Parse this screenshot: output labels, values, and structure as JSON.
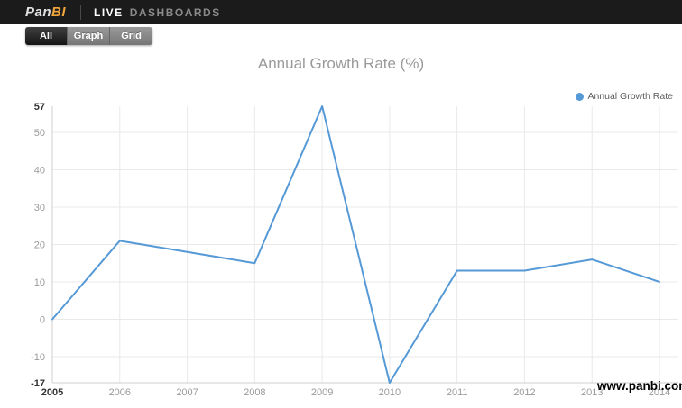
{
  "header": {
    "logo_part1": "Pan",
    "logo_part2": "BI",
    "live": "LIVE",
    "dashboards": "DASHBOARDS"
  },
  "tabs": [
    {
      "label": "All",
      "active": true
    },
    {
      "label": "Graph",
      "active": false
    },
    {
      "label": "Grid",
      "active": false
    }
  ],
  "watermark": "www.panbi.com",
  "colors": {
    "header_bg": "#1b1b1b",
    "logo_accent": "#f0a43c",
    "series_blue": "#5599d6",
    "gridline": "#e9e9e9",
    "axis_line": "#cfcfcf"
  },
  "chart_data": {
    "type": "line",
    "title": "Annual Growth Rate (%)",
    "categories": [
      "2005",
      "2006",
      "2007",
      "2008",
      "2009",
      "2010",
      "2011",
      "2012",
      "2013",
      "2014"
    ],
    "series": [
      {
        "name": "Annual Growth Rate",
        "color": "#5599d6",
        "values": [
          0,
          21,
          18,
          15,
          57,
          -17,
          13,
          13,
          16,
          10
        ]
      }
    ],
    "y_ticks": [
      57,
      50,
      40,
      30,
      20,
      10,
      0,
      -10,
      -17
    ],
    "ylim": [
      -17,
      57
    ],
    "xlabel": "",
    "ylabel": "",
    "grid": true,
    "legend_position": "top-right"
  }
}
